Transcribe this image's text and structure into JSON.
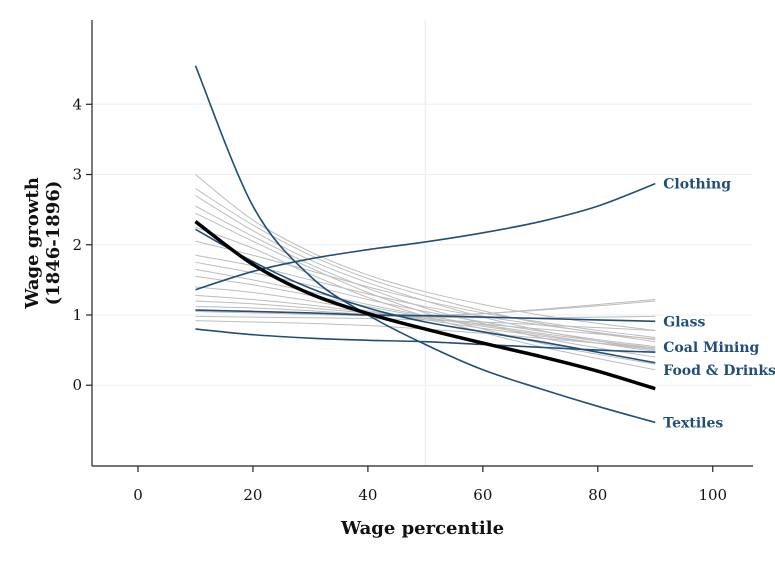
{
  "chart_data": {
    "type": "line",
    "title": "",
    "xlabel": "Wage percentile",
    "ylabel": "Wage growth",
    "ylabel_sub": "(1846-1896)",
    "xlim": [
      -8,
      107
    ],
    "ylim": [
      -1.15,
      5.2
    ],
    "x_ticks": [
      0,
      20,
      40,
      60,
      80,
      100
    ],
    "y_ticks": [
      0,
      1,
      2,
      3,
      4
    ],
    "reference_line_x": 50,
    "grid": "horizontal",
    "colors": {
      "highlight": "#1f4e79",
      "aggregate": "#000000",
      "background_series": "#bdbdbd",
      "grid": "#eaf0f4",
      "axis": "#222222"
    },
    "x": [
      10,
      20,
      30,
      40,
      50,
      60,
      70,
      80,
      90
    ],
    "highlighted_series": [
      {
        "name": "Clothing",
        "values": [
          1.36,
          1.62,
          1.8,
          1.93,
          2.04,
          2.17,
          2.33,
          2.55,
          2.87
        ]
      },
      {
        "name": "Glass",
        "values": [
          1.07,
          1.05,
          1.03,
          1.0,
          0.99,
          0.97,
          0.95,
          0.93,
          0.91
        ]
      },
      {
        "name": "Coal Mining",
        "values": [
          0.8,
          0.72,
          0.67,
          0.64,
          0.62,
          0.58,
          0.54,
          0.5,
          0.47
        ]
      },
      {
        "name": "Food & Drinks",
        "values": [
          2.22,
          1.76,
          1.38,
          1.1,
          0.9,
          0.76,
          0.62,
          0.47,
          0.32
        ]
      },
      {
        "name": "Textiles",
        "values": [
          4.55,
          2.55,
          1.55,
          1.0,
          0.58,
          0.22,
          -0.05,
          -0.3,
          -0.53
        ]
      }
    ],
    "aggregate_series": {
      "values": [
        2.33,
        1.72,
        1.3,
        1.02,
        0.8,
        0.6,
        0.41,
        0.2,
        -0.05
      ]
    },
    "background_series": [
      {
        "values": [
          3.0,
          2.35,
          1.9,
          1.57,
          1.33,
          1.15,
          1.0,
          0.88,
          0.78
        ]
      },
      {
        "values": [
          2.8,
          2.28,
          1.85,
          1.52,
          1.27,
          1.06,
          0.88,
          0.74,
          0.62
        ]
      },
      {
        "values": [
          2.7,
          2.2,
          1.78,
          1.46,
          1.2,
          0.97,
          0.78,
          0.63,
          0.5
        ]
      },
      {
        "values": [
          2.55,
          2.12,
          1.72,
          1.38,
          1.1,
          0.88,
          0.68,
          0.53,
          0.4
        ]
      },
      {
        "values": [
          2.45,
          2.05,
          1.67,
          1.32,
          1.03,
          0.8,
          0.6,
          0.44,
          0.3
        ]
      },
      {
        "values": [
          2.25,
          1.95,
          1.58,
          1.25,
          0.98,
          0.75,
          0.55,
          0.38,
          0.22
        ]
      },
      {
        "values": [
          2.05,
          1.85,
          1.63,
          1.4,
          1.2,
          1.03,
          0.9,
          0.78,
          0.68
        ]
      },
      {
        "values": [
          1.85,
          1.7,
          1.5,
          1.3,
          1.12,
          0.98,
          0.86,
          0.75,
          0.65
        ]
      },
      {
        "values": [
          1.75,
          1.6,
          1.42,
          1.22,
          1.05,
          0.9,
          0.77,
          0.65,
          0.55
        ]
      },
      {
        "values": [
          1.65,
          1.5,
          1.33,
          1.15,
          0.99,
          0.86,
          0.74,
          0.63,
          0.53
        ]
      },
      {
        "values": [
          1.55,
          1.43,
          1.28,
          1.12,
          0.97,
          0.84,
          0.72,
          0.6,
          0.48
        ]
      },
      {
        "values": [
          1.4,
          1.32,
          1.2,
          1.06,
          0.93,
          0.81,
          0.7,
          0.6,
          0.51
        ]
      },
      {
        "values": [
          1.28,
          1.22,
          1.14,
          1.04,
          0.95,
          0.87,
          0.8,
          0.73,
          0.66
        ]
      },
      {
        "values": [
          1.2,
          1.16,
          1.1,
          1.03,
          1.0,
          1.02,
          1.07,
          1.13,
          1.2
        ]
      },
      {
        "values": [
          1.12,
          1.1,
          1.06,
          1.01,
          0.99,
          1.02,
          1.08,
          1.15,
          1.22
        ]
      },
      {
        "values": [
          1.05,
          1.03,
          1.01,
          0.99,
          0.97,
          0.96,
          0.96,
          0.97,
          0.98
        ]
      },
      {
        "values": [
          0.98,
          0.97,
          0.96,
          0.95,
          0.93,
          0.9,
          0.86,
          0.82,
          0.78
        ]
      },
      {
        "values": [
          0.92,
          0.9,
          0.88,
          0.85,
          0.8,
          0.74,
          0.67,
          0.6,
          0.53
        ]
      }
    ]
  }
}
